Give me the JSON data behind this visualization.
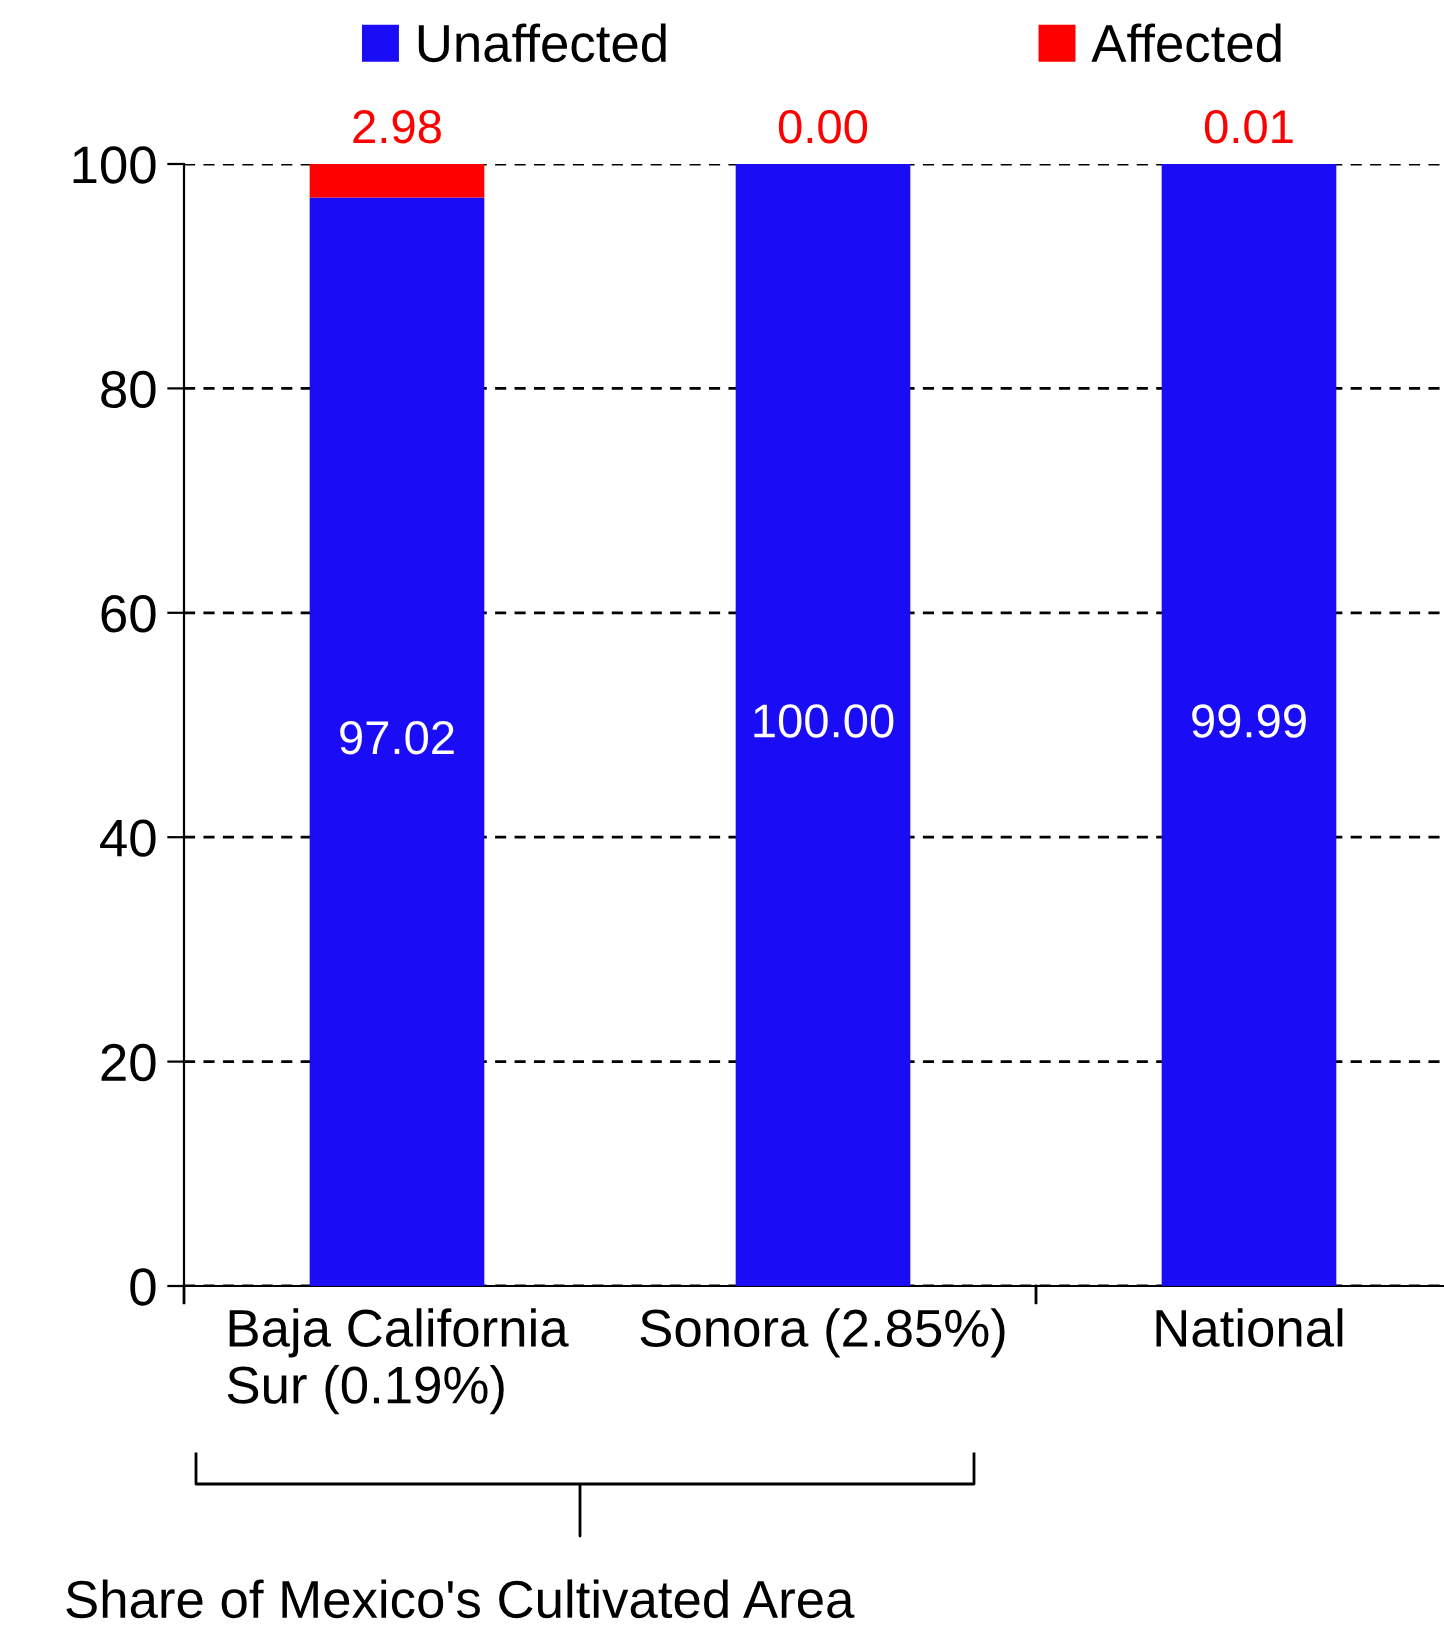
{
  "chart_data": {
    "type": "bar",
    "stacked": true,
    "categories": [
      "Baja California\nSur (0.19%)",
      "Sonora (2.85%)",
      "National"
    ],
    "series": [
      {
        "name": "Unaffected",
        "color": "#1a0df5",
        "values": [
          97.02,
          100.0,
          99.99
        ],
        "value_labels": [
          "97.02",
          "100.00",
          "99.99"
        ]
      },
      {
        "name": "Affected",
        "color": "#ff0000",
        "values": [
          2.98,
          0.0,
          0.01
        ],
        "value_labels": [
          "2.98",
          "0.00",
          "0.01"
        ]
      }
    ],
    "ylim": [
      0,
      100
    ],
    "yticks": [
      0,
      20,
      40,
      60,
      80,
      100
    ],
    "grid": "y",
    "legend": "top",
    "annotations": [
      "Share of Mexico's Cultivated Area"
    ]
  }
}
